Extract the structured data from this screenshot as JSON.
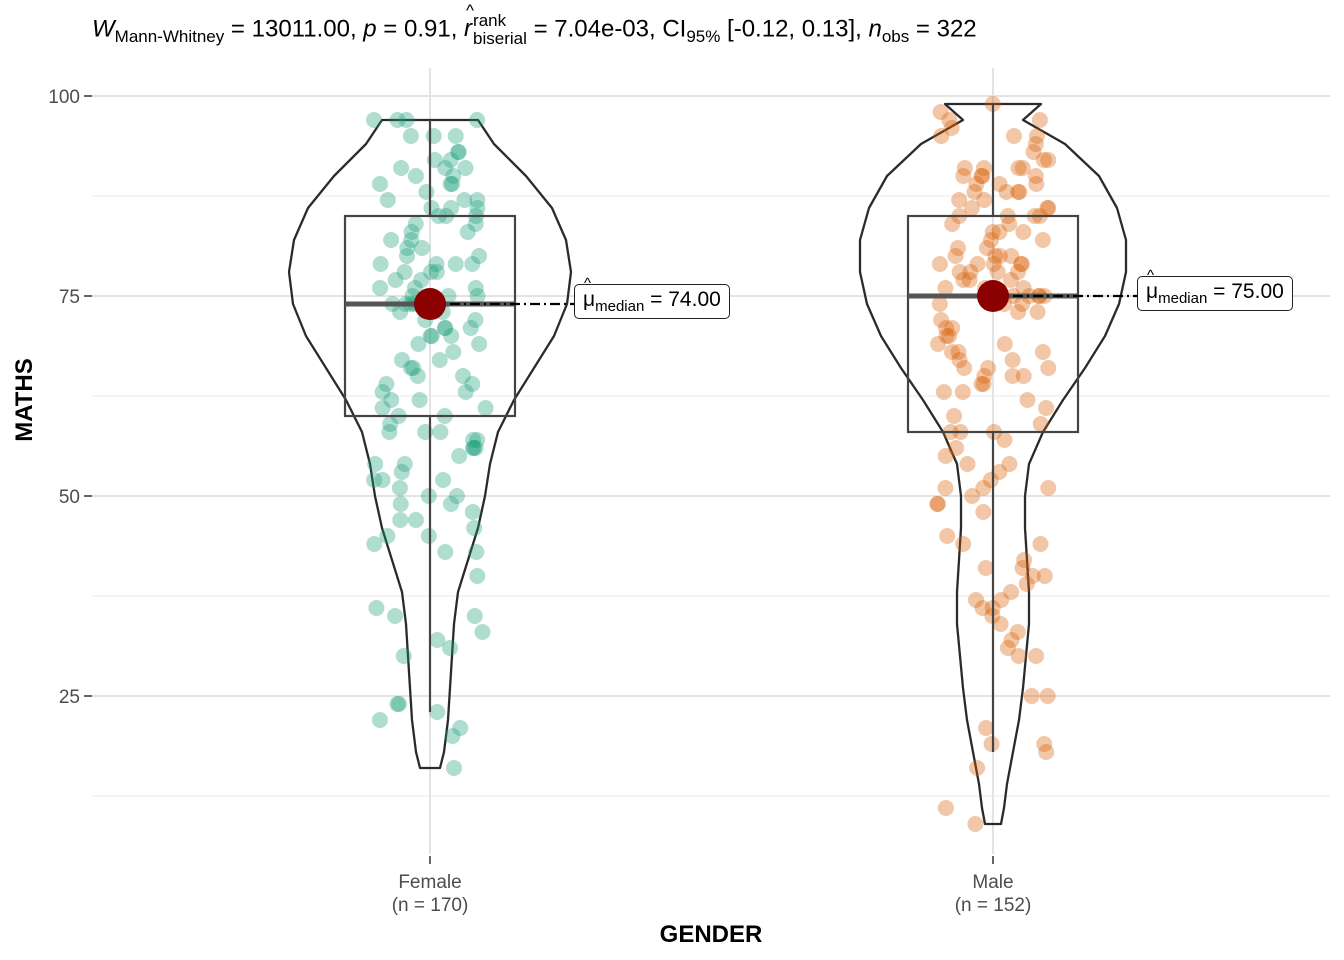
{
  "subtitle": {
    "w_symbol": "W",
    "w_sub": "Mann-Whitney",
    "w_value": " = 13011.00, ",
    "p_symbol": "p",
    "p_value": " = 0.91, ",
    "r_symbol": "r",
    "r_sup": "rank",
    "r_sub": "biserial",
    "r_value": " = 7.04e-03, CI",
    "ci_sub": "95%",
    "ci_value": " [-0.12, 0.13], ",
    "n_symbol": "n",
    "n_sub": "obs",
    "n_value": " = 322"
  },
  "chart_data": {
    "type": "violin-box-scatter",
    "xlabel": "GENDER",
    "ylabel": "MATHS",
    "ylim": [
      5,
      103
    ],
    "yticks": [
      25,
      50,
      75,
      100
    ],
    "grid": true,
    "groups": [
      {
        "name": "Female",
        "n_label": "(n = 170)",
        "color": "#1B9E77",
        "box": {
          "q1": 60,
          "median": 74,
          "q3": 85,
          "whisker_low": 23,
          "whisker_high": 97
        },
        "violin_range": [
          16,
          97
        ],
        "median_label": {
          "prefix": "μ",
          "sub": "median",
          "value": " = 74.00"
        },
        "points": [
          97,
          97,
          97,
          97,
          95,
          95,
          95,
          93,
          93,
          92,
          92,
          91,
          91,
          91,
          90,
          90,
          89,
          89,
          89,
          88,
          87,
          87,
          87,
          86,
          86,
          86,
          85,
          85,
          85,
          84,
          84,
          83,
          83,
          82,
          82,
          81,
          81,
          80,
          80,
          79,
          79,
          79,
          79,
          78,
          78,
          78,
          77,
          77,
          76,
          76,
          76,
          75,
          75,
          75,
          75,
          74,
          74,
          74,
          74,
          74,
          74,
          73,
          73,
          73,
          72,
          72,
          71,
          71,
          71,
          70,
          70,
          70,
          69,
          69,
          68,
          67,
          67,
          66,
          66,
          65,
          65,
          64,
          64,
          63,
          63,
          62,
          62,
          61,
          61,
          60,
          60,
          59,
          58,
          58,
          58,
          57,
          57,
          56,
          56,
          56,
          55,
          54,
          54,
          53,
          52,
          52,
          52,
          51,
          50,
          50,
          49,
          49,
          48,
          47,
          47,
          46,
          45,
          45,
          44,
          43,
          43,
          40,
          36,
          35,
          35,
          33,
          32,
          31,
          30,
          24,
          24,
          23,
          22,
          21,
          20,
          16
        ]
      },
      {
        "name": "Male",
        "n_label": "(n = 152)",
        "color": "#D95F02",
        "box": {
          "q1": 58,
          "median": 75,
          "q3": 85,
          "whisker_low": 18,
          "whisker_high": 99
        },
        "violin_range": [
          9,
          99
        ],
        "median_label": {
          "prefix": "μ",
          "sub": "median",
          "value": " = 75.00"
        },
        "points": [
          99,
          98,
          97,
          97,
          96,
          95,
          95,
          95,
          94,
          93,
          92,
          92,
          91,
          91,
          91,
          91,
          90,
          90,
          90,
          90,
          89,
          89,
          89,
          88,
          88,
          88,
          88,
          87,
          87,
          86,
          86,
          86,
          85,
          85,
          85,
          85,
          84,
          84,
          83,
          83,
          83,
          82,
          82,
          81,
          81,
          80,
          80,
          80,
          80,
          79,
          79,
          79,
          79,
          79,
          78,
          78,
          78,
          78,
          77,
          77,
          77,
          76,
          76,
          76,
          75,
          75,
          75,
          75,
          75,
          74,
          74,
          74,
          73,
          73,
          72,
          71,
          71,
          70,
          70,
          69,
          69,
          68,
          68,
          68,
          67,
          67,
          66,
          66,
          66,
          65,
          65,
          65,
          64,
          64,
          63,
          63,
          62,
          61,
          60,
          59,
          58,
          58,
          58,
          57,
          56,
          55,
          54,
          54,
          53,
          52,
          51,
          51,
          51,
          50,
          49,
          49,
          48,
          45,
          44,
          44,
          42,
          41,
          41,
          40,
          40,
          39,
          38,
          37,
          37,
          36,
          36,
          35,
          34,
          33,
          32,
          31,
          30,
          30,
          25,
          25,
          21,
          19,
          19,
          18,
          16,
          11,
          9
        ]
      }
    ]
  }
}
